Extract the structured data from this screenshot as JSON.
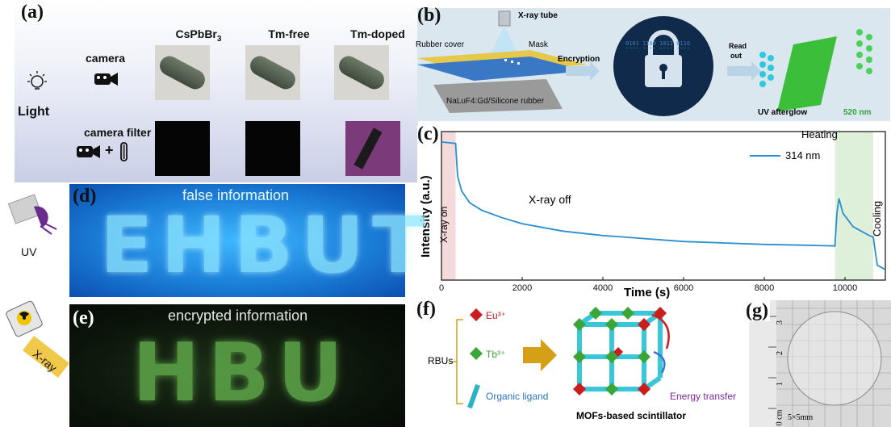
{
  "panel_a": {
    "label": "(a)",
    "columns": [
      "CsPbBr3",
      "Tm-free",
      "Tm-doped"
    ],
    "light_label": "Light",
    "row1_label": "camera",
    "row2_label": "camera  filter",
    "plus": "+"
  },
  "panel_b": {
    "label": "(b)",
    "xray_tube": "X-ray tube",
    "rubber_cover": "Rubber cover",
    "mask": "Mask",
    "substrate": "NaLuF4:Gd/Silicone rubber",
    "encryption": "Encryption",
    "read_out_line1": "Read",
    "read_out_line2": "out",
    "uv_afterglow": "UV afterglow",
    "wavelength": "520 nm",
    "binary_text": "0101 1100 1011 0110 1001 0011 1101 0010"
  },
  "panel_c": {
    "label": "(c)",
    "legend": "314 nm",
    "annot_xray_on": "X-ray on",
    "annot_xray_off": "X-ray off",
    "annot_heating": "Heating",
    "annot_cooling": "Cooling",
    "ylabel": "Intensity (a.u.)",
    "xlabel": "Time (s)",
    "xticks": [
      "0",
      "2000",
      "4000",
      "6000",
      "8000",
      "10000"
    ]
  },
  "panel_d": {
    "label": "(d)",
    "caption": "false information",
    "word": "EHBUT",
    "uv_label": "UV"
  },
  "panel_e": {
    "label": "(e)",
    "caption": "encrypted information",
    "word": "HBU",
    "xray_label": "X-ray"
  },
  "panel_f": {
    "label": "(f)",
    "rbus": "RBUs",
    "eu": "Eu³⁺",
    "tb": "Tb³⁺",
    "ligand": "Organic ligand",
    "energy": "Energy transfer",
    "title": "MOFs-based scintillator"
  },
  "panel_g": {
    "label": "(g)",
    "scale_marks": [
      "3",
      "2",
      "1",
      "0 cm"
    ],
    "size_text": "5×5mm"
  },
  "chart_data": {
    "type": "line",
    "title": "",
    "xlabel": "Time (s)",
    "ylabel": "Intensity (a.u.)",
    "xlim": [
      0,
      11000
    ],
    "series": [
      {
        "name": "314 nm",
        "x": [
          0,
          350,
          400,
          500,
          700,
          1000,
          1500,
          2000,
          3000,
          4000,
          5000,
          6000,
          7000,
          8000,
          9000,
          9750,
          9800,
          9850,
          9950,
          10200,
          10600,
          10700,
          10800,
          11000
        ],
        "y": [
          0.93,
          0.92,
          0.7,
          0.6,
          0.52,
          0.47,
          0.42,
          0.38,
          0.33,
          0.3,
          0.28,
          0.26,
          0.25,
          0.24,
          0.235,
          0.23,
          0.45,
          0.55,
          0.45,
          0.36,
          0.3,
          0.29,
          0.1,
          0.07
        ]
      }
    ],
    "shaded_regions": [
      {
        "name": "X-ray on",
        "x": [
          0,
          350
        ],
        "color": "#f4dada"
      },
      {
        "name": "Heating",
        "x": [
          9750,
          10700
        ],
        "color": "#dff0da"
      }
    ],
    "line_color": "#2a8fd1"
  }
}
